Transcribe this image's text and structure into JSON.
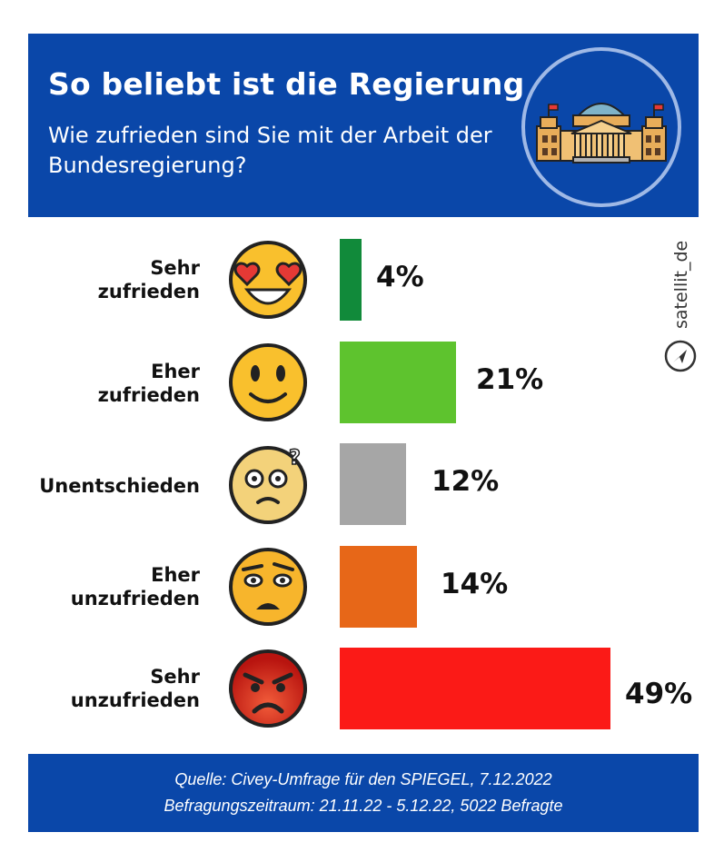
{
  "header": {
    "title": "So beliebt ist die Regierung",
    "subtitle": "Wie zufrieden sind Sie mit der Arbeit der Bundesregierung?",
    "emblem_icon": "reichstag-building-icon"
  },
  "chart_data": {
    "type": "bar",
    "orientation": "horizontal",
    "title": "So beliebt ist die Regierung",
    "subtitle": "Wie zufrieden sind Sie mit der Arbeit der Bundesregierung?",
    "categories": [
      [
        "Sehr",
        "zufrieden"
      ],
      [
        "Eher",
        "zufrieden"
      ],
      [
        "Unentschieden"
      ],
      [
        "Eher",
        "unzufrieden"
      ],
      [
        "Sehr",
        "unzufrieden"
      ]
    ],
    "values": [
      4,
      21,
      12,
      14,
      49
    ],
    "value_labels": [
      "4%",
      "21%",
      "12%",
      "14%",
      "49%"
    ],
    "unit": "%",
    "colors": [
      "#118a3a",
      "#5ec32e",
      "#a6a6a6",
      "#e76718",
      "#fb1a17"
    ],
    "emoji_icons": [
      "heart-eyes-emoji-icon",
      "smiling-emoji-icon",
      "confused-emoji-icon",
      "skeptical-emoji-icon",
      "angry-emoji-icon"
    ],
    "grid": false,
    "legend": "none"
  },
  "brand": {
    "text": "satellit_de",
    "icon": "paper-plane-icon"
  },
  "footer": {
    "source": "Quelle: Civey-Umfrage für den SPIEGEL, 7.12.2022",
    "period": "Befragungszeitraum: 21.11.22 - 5.12.22, 5022 Befragte"
  }
}
